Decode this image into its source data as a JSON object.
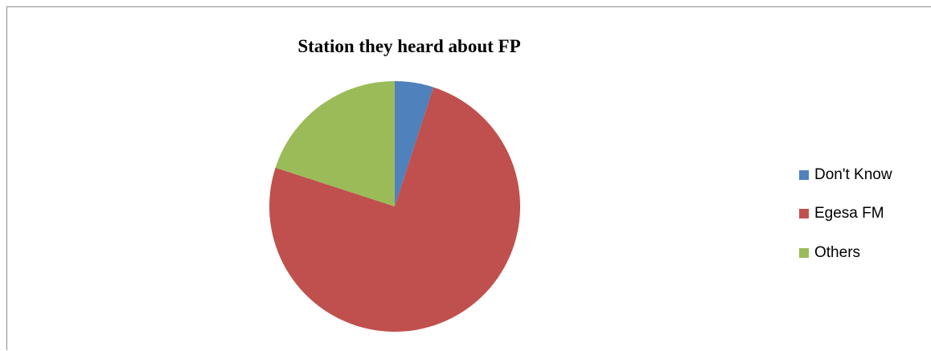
{
  "chart_data": {
    "type": "pie",
    "title": "Station they heard about FP",
    "categories": [
      "Don't Know",
      "Egesa FM",
      "Others"
    ],
    "values": [
      5,
      75,
      20
    ],
    "colors": [
      "#4f81bd",
      "#c0504d",
      "#9bbb59"
    ],
    "legend_position": "right",
    "start_angle": "12 o'clock",
    "direction": "clockwise"
  }
}
